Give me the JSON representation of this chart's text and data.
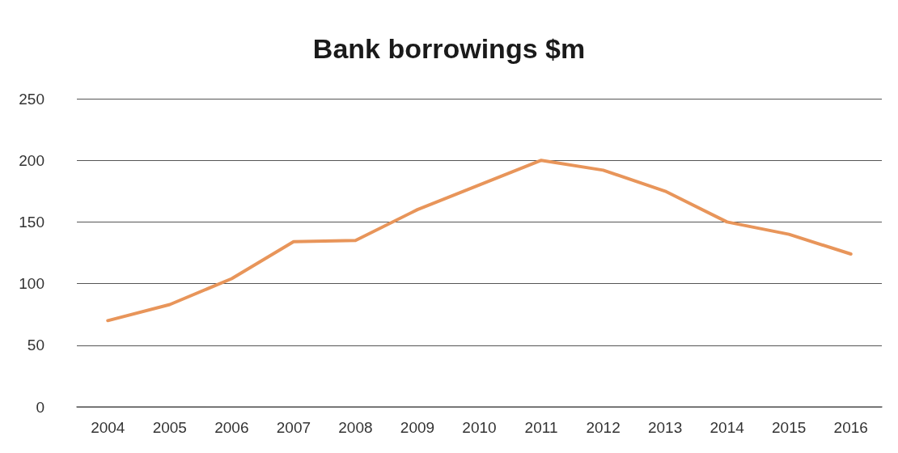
{
  "chart_data": {
    "type": "line",
    "title": "Bank borrowings $m",
    "categories": [
      "2004",
      "2005",
      "2006",
      "2007",
      "2008",
      "2009",
      "2010",
      "2011",
      "2012",
      "2013",
      "2014",
      "2015",
      "2016"
    ],
    "series": [
      {
        "color": "#e8955a",
        "values": [
          70,
          83,
          104,
          134,
          135,
          160,
          180,
          200,
          192,
          175,
          150,
          140,
          124
        ]
      }
    ],
    "ylim": [
      0,
      250
    ],
    "yticks": [
      0,
      50,
      100,
      150,
      200,
      250
    ],
    "grid": "y",
    "marker": "none",
    "line_style": "solid"
  }
}
